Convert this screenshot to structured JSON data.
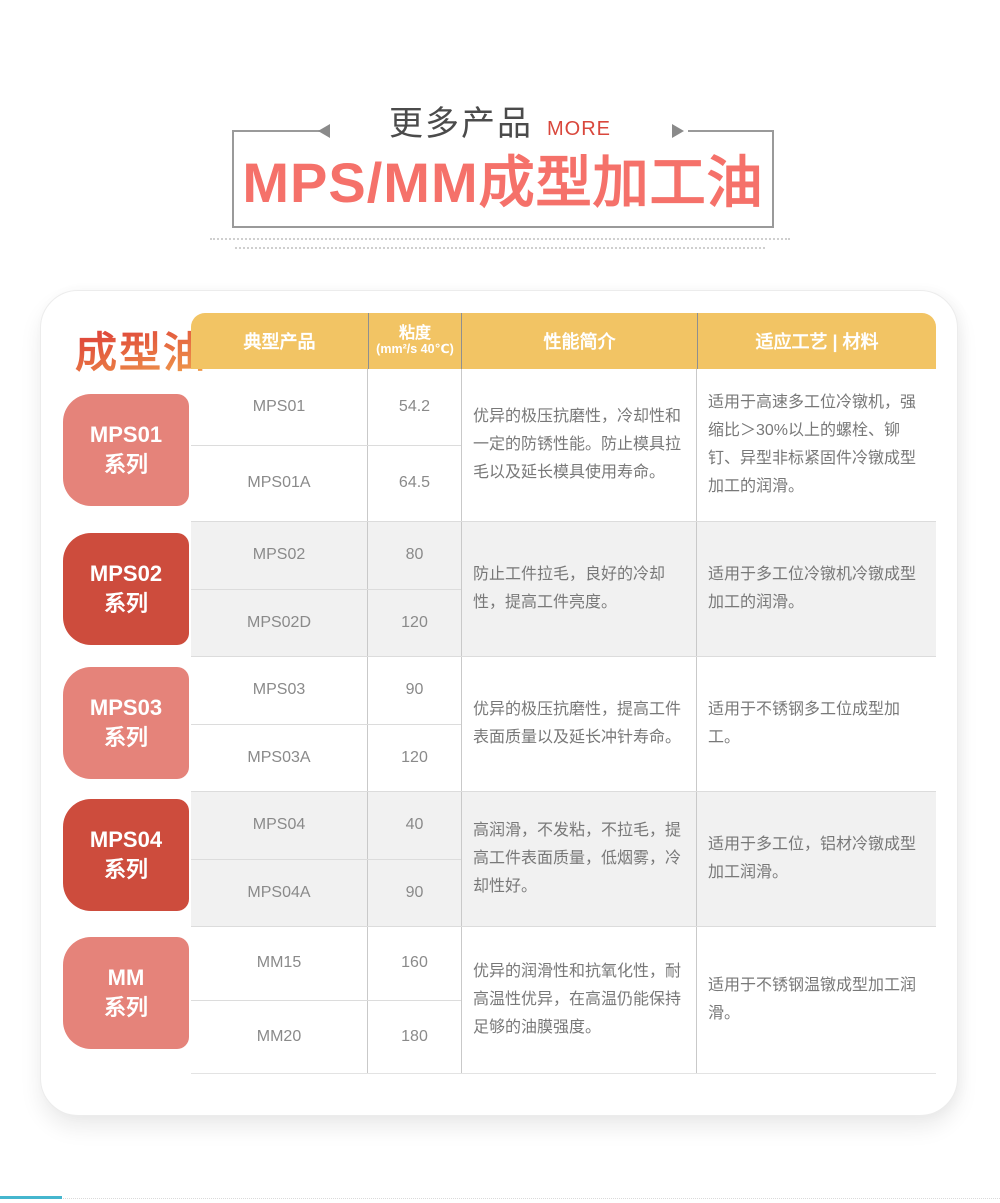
{
  "header": {
    "more_cn": "更多产品",
    "more_en": "MORE",
    "product_title": "MPS/MM成型加工油"
  },
  "panel": {
    "side_title": "成型油",
    "series": [
      {
        "name": "MPS01",
        "suffix": "系列"
      },
      {
        "name": "MPS02",
        "suffix": "系列"
      },
      {
        "name": "MPS03",
        "suffix": "系列"
      },
      {
        "name": "MPS04",
        "suffix": "系列"
      },
      {
        "name": "MM",
        "suffix": "系列"
      }
    ]
  },
  "table": {
    "columns": {
      "product": "典型产品",
      "viscosity_title": "粘度",
      "viscosity_unit": "(mm²/s 40℃)",
      "performance": "性能简介",
      "application": "适应工艺 | 材料"
    },
    "groups": [
      {
        "products": [
          {
            "name": "MPS01",
            "viscosity": "54.2"
          },
          {
            "name": "MPS01A",
            "viscosity": "64.5"
          }
        ],
        "performance": "优异的极压抗磨性，冷却性和一定的防锈性能。防止模具拉毛以及延长模具使用寿命。",
        "application": "适用于高速多工位冷镦机，强缩比＞30%以上的螺栓、铆钉、异型非标紧固件冷镦成型加工的润滑。"
      },
      {
        "products": [
          {
            "name": "MPS02",
            "viscosity": "80"
          },
          {
            "name": "MPS02D",
            "viscosity": "120"
          }
        ],
        "performance": "防止工件拉毛，良好的冷却性，提高工件亮度。",
        "application": "适用于多工位冷镦机冷镦成型加工的润滑。"
      },
      {
        "products": [
          {
            "name": "MPS03",
            "viscosity": "90"
          },
          {
            "name": "MPS03A",
            "viscosity": "120"
          }
        ],
        "performance": "优异的极压抗磨性，提高工件表面质量以及延长冲针寿命。",
        "application": "适用于不锈钢多工位成型加工。"
      },
      {
        "products": [
          {
            "name": "MPS04",
            "viscosity": "40"
          },
          {
            "name": "MPS04A",
            "viscosity": "90"
          }
        ],
        "performance": "高润滑，不发粘，不拉毛，提高工件表面质量，低烟雾，冷却性好。",
        "application": "适用于多工位，铝材冷镦成型加工润滑。"
      },
      {
        "products": [
          {
            "name": "MM15",
            "viscosity": "160"
          },
          {
            "name": "MM20",
            "viscosity": "180"
          }
        ],
        "performance": "优异的润滑性和抗氧化性，耐高温性优异，在高温仍能保持足够的油膜强度。",
        "application": "适用于不锈钢温镦成型加工润滑。"
      }
    ]
  },
  "colors": {
    "accent_red": "#F5716A",
    "more_red": "#D9473C",
    "header_amber": "#F2C464",
    "series_light": "#E5837A",
    "series_dark": "#CD4C3D",
    "bottom_teal": "#45B6CE"
  }
}
